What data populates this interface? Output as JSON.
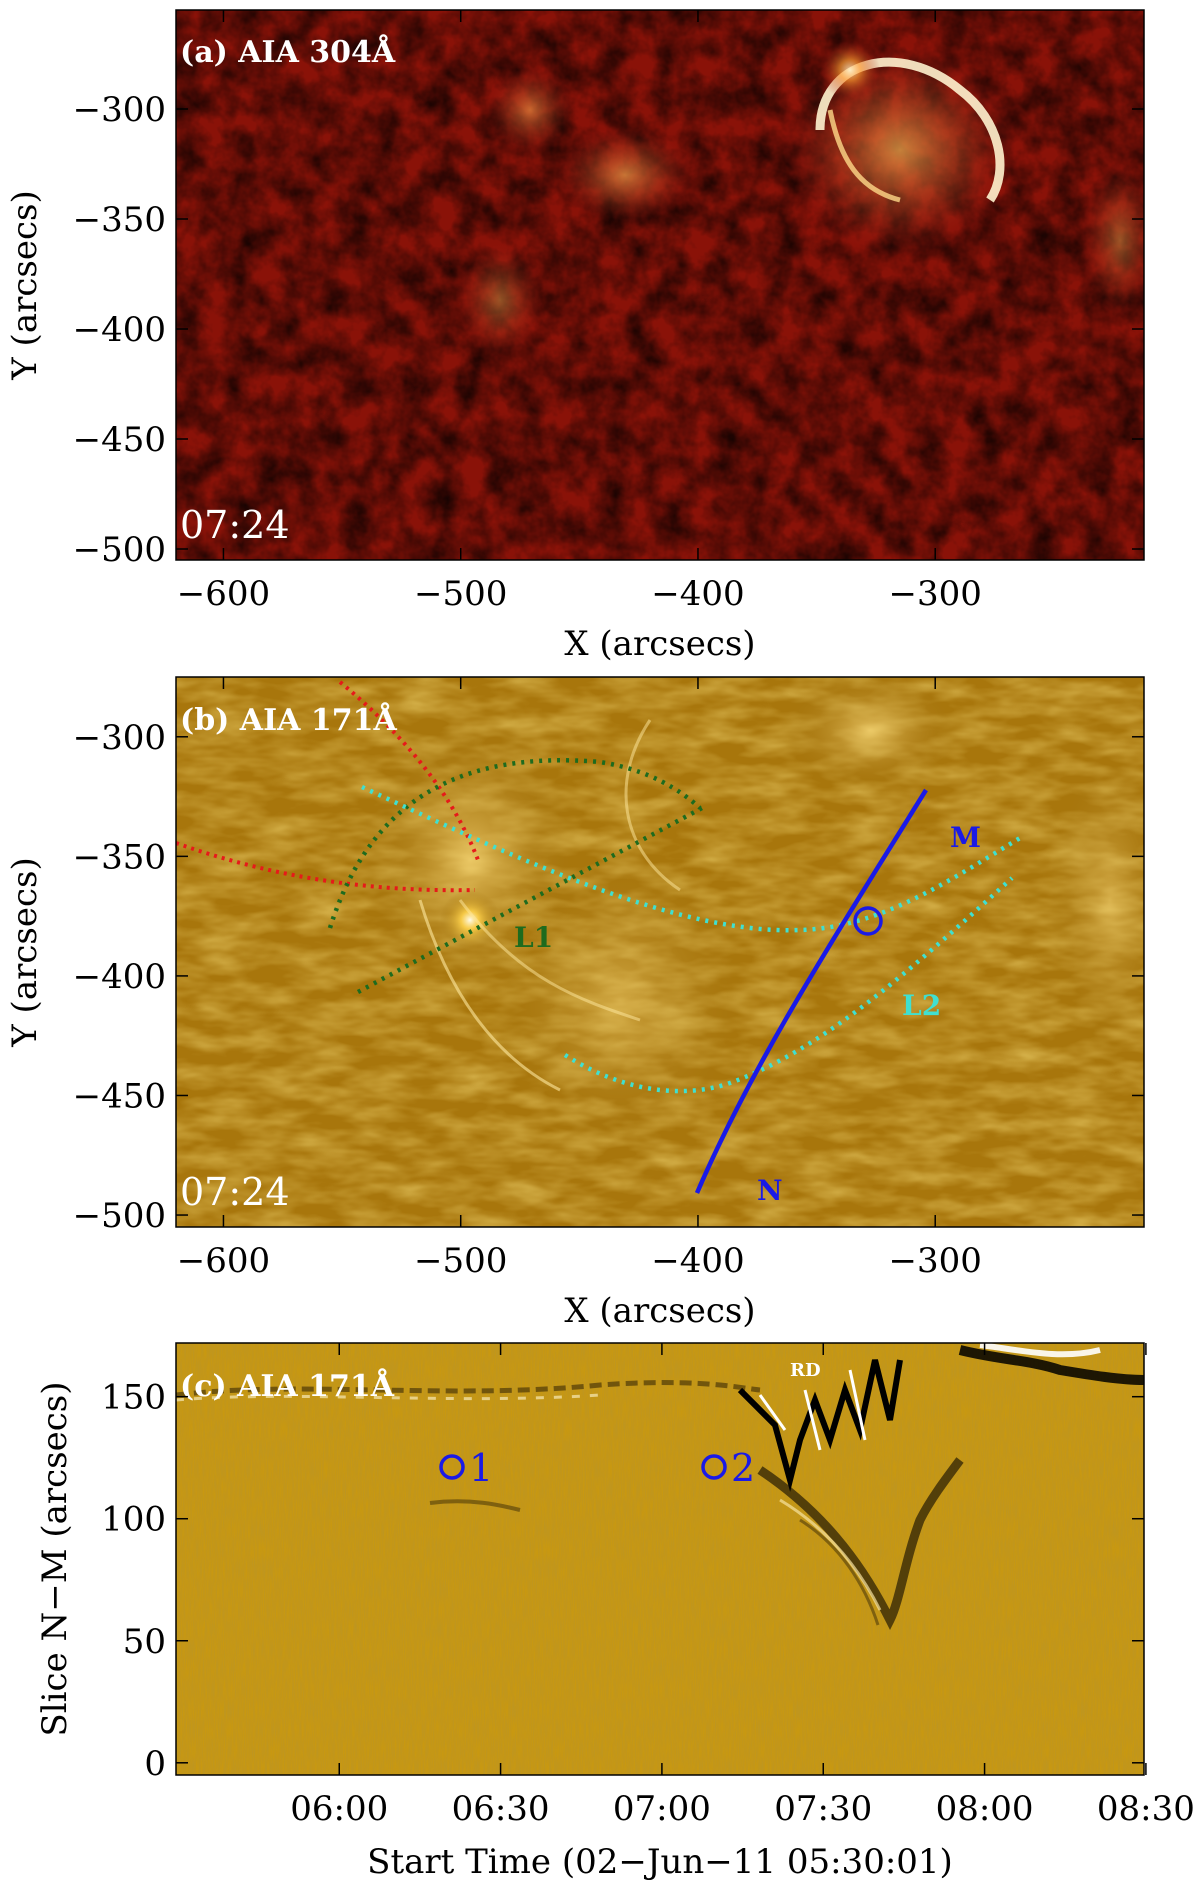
{
  "panels": [
    {
      "id": "a",
      "label": "(a) AIA 304Å",
      "timestamp": "07:24",
      "xlabel": "X (arcsecs)",
      "ylabel": "Y (arcsecs)",
      "xlim": [
        -620,
        -212
      ],
      "ylim": [
        -505,
        -255
      ],
      "xticks": [
        -600,
        -500,
        -400,
        -300
      ],
      "yticks": [
        -300,
        -350,
        -400,
        -450,
        -500
      ],
      "xticklabels": [
        "−600",
        "−500",
        "−400",
        "−300"
      ],
      "yticklabels": [
        "−300",
        "−350",
        "−400",
        "−450",
        "−500"
      ],
      "colormap": "AIA 304 red"
    },
    {
      "id": "b",
      "label": "(b) AIA 171Å",
      "timestamp": "07:24",
      "xlabel": "X (arcsecs)",
      "ylabel": "Y (arcsecs)",
      "xlim": [
        -620,
        -212
      ],
      "ylim": [
        -505,
        -275
      ],
      "xticks": [
        -600,
        -500,
        -400,
        -300
      ],
      "yticks": [
        -300,
        -350,
        -400,
        -450,
        -500
      ],
      "xticklabels": [
        "−600",
        "−500",
        "−400",
        "−300"
      ],
      "yticklabels": [
        "−300",
        "−350",
        "−400",
        "−450",
        "−500"
      ],
      "colormap": "AIA 171 gold",
      "annotations": {
        "L1": "L1",
        "L2": "L2",
        "M": "M",
        "N": "N"
      },
      "slice_endpoints": {
        "N": [
          -395,
          -490
        ],
        "M": [
          -300,
          -315
        ]
      },
      "slice_circle_center": [
        -327,
        -370
      ],
      "line_colors": {
        "slice": "#1a1ae6",
        "L1": "#1e6b1e",
        "L2": "#40e0d0",
        "red": "#e61a1a"
      }
    },
    {
      "id": "c",
      "label": "(c) AIA 171Å",
      "xlabel": "Start Time (02−Jun−11 05:30:01)",
      "ylabel": "Slice N−M (arcsecs)",
      "xticklabels": [
        "06:00",
        "06:30",
        "07:00",
        "07:30",
        "08:00",
        "08:30"
      ],
      "yticks": [
        0,
        50,
        100,
        150
      ],
      "yticklabels": [
        "0",
        "50",
        "100",
        "150"
      ],
      "ylim": [
        -5,
        172
      ],
      "annotations": {
        "RD": "RD",
        "o1": "1",
        "o2": "2"
      },
      "marker_color": "#1a1ae6",
      "colormap": "AIA 171 gold running difference"
    }
  ]
}
